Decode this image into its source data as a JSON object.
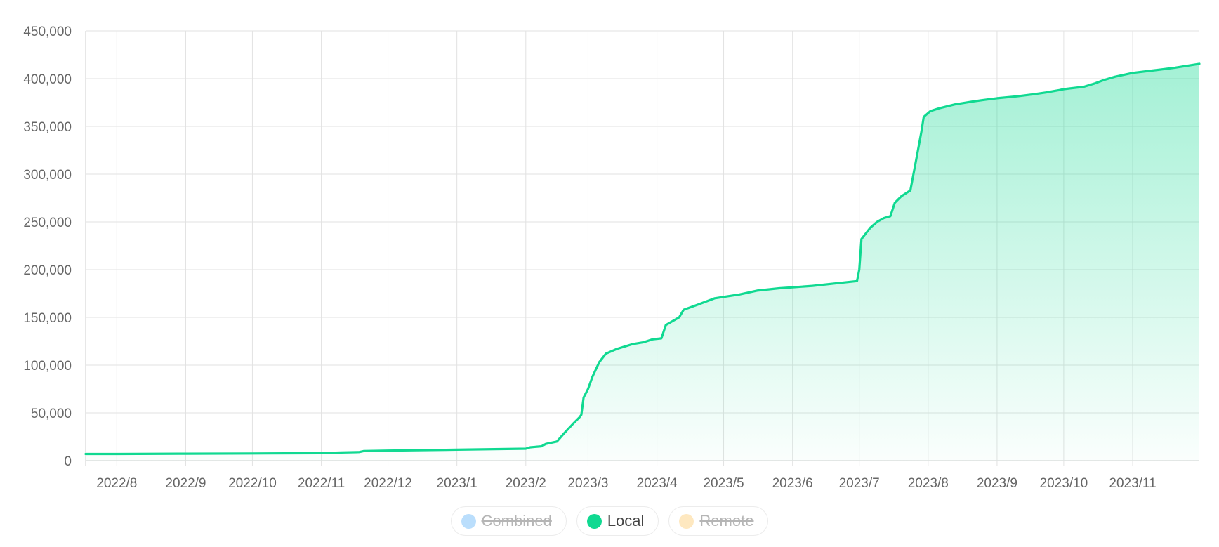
{
  "chart_data": {
    "type": "area",
    "title": "",
    "xlabel": "",
    "ylabel": "",
    "ylim": [
      0,
      450000
    ],
    "yticks": [
      0,
      50000,
      100000,
      150000,
      200000,
      250000,
      300000,
      350000,
      400000,
      450000
    ],
    "ytick_labels": [
      "0",
      "50,000",
      "100,000",
      "150,000",
      "200,000",
      "250,000",
      "300,000",
      "350,000",
      "400,000",
      "450,000"
    ],
    "xlim": [
      "2022-07-18",
      "2023-12-01"
    ],
    "xticks": [
      "2022-08-01",
      "2022-09-01",
      "2022-10-01",
      "2022-11-01",
      "2022-12-01",
      "2023-01-01",
      "2023-02-01",
      "2023-03-01",
      "2023-04-01",
      "2023-05-01",
      "2023-06-01",
      "2023-07-01",
      "2023-08-01",
      "2023-09-01",
      "2023-10-01",
      "2023-11-01"
    ],
    "xtick_labels": [
      "2022/8",
      "2022/9",
      "2022/10",
      "2022/11",
      "2022/12",
      "2023/1",
      "2023/2",
      "2023/3",
      "2023/4",
      "2023/5",
      "2023/6",
      "2023/7",
      "2023/8",
      "2023/9",
      "2023/10",
      "2023/11"
    ],
    "grid": true,
    "legend_position": "bottom-center",
    "series": [
      {
        "name": "Local",
        "color": "#10d991",
        "visible": true,
        "points": [
          [
            "2022-07-18",
            7000
          ],
          [
            "2022-08-01",
            7000
          ],
          [
            "2022-09-01",
            7300
          ],
          [
            "2022-10-01",
            7500
          ],
          [
            "2022-10-31",
            7800
          ],
          [
            "2022-11-10",
            8500
          ],
          [
            "2022-11-18",
            9000
          ],
          [
            "2022-11-20",
            10000
          ],
          [
            "2022-12-01",
            10500
          ],
          [
            "2023-01-01",
            11500
          ],
          [
            "2023-02-01",
            12500
          ],
          [
            "2023-02-03",
            14000
          ],
          [
            "2023-02-08",
            15000
          ],
          [
            "2023-02-10",
            17500
          ],
          [
            "2023-02-15",
            20000
          ],
          [
            "2023-02-18",
            28000
          ],
          [
            "2023-02-22",
            38000
          ],
          [
            "2023-02-25",
            45000
          ],
          [
            "2023-02-26",
            48000
          ],
          [
            "2023-02-27",
            66000
          ],
          [
            "2023-03-01",
            75000
          ],
          [
            "2023-03-03",
            88000
          ],
          [
            "2023-03-06",
            103000
          ],
          [
            "2023-03-09",
            112000
          ],
          [
            "2023-03-14",
            117000
          ],
          [
            "2023-03-21",
            122000
          ],
          [
            "2023-03-26",
            124000
          ],
          [
            "2023-03-30",
            127000
          ],
          [
            "2023-04-03",
            128000
          ],
          [
            "2023-04-05",
            142000
          ],
          [
            "2023-04-08",
            146000
          ],
          [
            "2023-04-11",
            150000
          ],
          [
            "2023-04-13",
            158000
          ],
          [
            "2023-04-19",
            163000
          ],
          [
            "2023-04-27",
            170000
          ],
          [
            "2023-05-01",
            171500
          ],
          [
            "2023-05-08",
            174000
          ],
          [
            "2023-05-16",
            178000
          ],
          [
            "2023-05-26",
            180500
          ],
          [
            "2023-06-01",
            181500
          ],
          [
            "2023-06-10",
            183000
          ],
          [
            "2023-06-20",
            185500
          ],
          [
            "2023-06-30",
            188000
          ],
          [
            "2023-07-01",
            200000
          ],
          [
            "2023-07-02",
            232000
          ],
          [
            "2023-07-04",
            238000
          ],
          [
            "2023-07-06",
            244000
          ],
          [
            "2023-07-09",
            250000
          ],
          [
            "2023-07-12",
            254000
          ],
          [
            "2023-07-15",
            256000
          ],
          [
            "2023-07-17",
            270000
          ],
          [
            "2023-07-20",
            277000
          ],
          [
            "2023-07-24",
            283000
          ],
          [
            "2023-07-27",
            320000
          ],
          [
            "2023-07-29",
            345000
          ],
          [
            "2023-07-30",
            360000
          ],
          [
            "2023-08-02",
            366000
          ],
          [
            "2023-08-06",
            369000
          ],
          [
            "2023-08-13",
            373000
          ],
          [
            "2023-08-21",
            376000
          ],
          [
            "2023-08-27",
            378000
          ],
          [
            "2023-09-01",
            379500
          ],
          [
            "2023-09-10",
            381500
          ],
          [
            "2023-09-17",
            383500
          ],
          [
            "2023-09-23",
            385500
          ],
          [
            "2023-09-29",
            388000
          ],
          [
            "2023-10-01",
            389000
          ],
          [
            "2023-10-10",
            391500
          ],
          [
            "2023-10-15",
            395000
          ],
          [
            "2023-10-19",
            398500
          ],
          [
            "2023-10-24",
            402000
          ],
          [
            "2023-11-01",
            406000
          ],
          [
            "2023-11-10",
            408500
          ],
          [
            "2023-11-20",
            411500
          ],
          [
            "2023-12-01",
            415500
          ]
        ]
      }
    ],
    "legend": [
      {
        "name": "Combined",
        "color": "#82c3fa",
        "visible": false
      },
      {
        "name": "Local",
        "color": "#10d991",
        "visible": true
      },
      {
        "name": "Remote",
        "color": "#fdd58c",
        "visible": false
      }
    ]
  }
}
